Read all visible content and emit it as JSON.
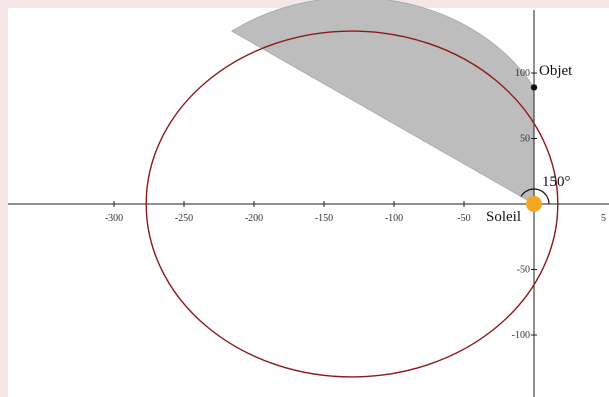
{
  "diagram": {
    "type": "orbital-ellipse",
    "colors": {
      "background": "#f3e7e7",
      "plot_bg": "#ffffff",
      "ellipse": "#8b1a1a",
      "swept_area": "#bdbdbd",
      "sun": "#f5a623",
      "object_point": "#111111",
      "axis": "#222222"
    },
    "x_axis": {
      "ticks": [
        {
          "value": -300,
          "label": "-300"
        },
        {
          "value": -250,
          "label": "-250"
        },
        {
          "value": -200,
          "label": "-200"
        },
        {
          "value": -150,
          "label": "-150"
        },
        {
          "value": -100,
          "label": "-100"
        },
        {
          "value": -50,
          "label": "-50"
        }
      ],
      "partial_tick_label": "5"
    },
    "y_axis": {
      "ticks": [
        {
          "value": 100,
          "label": "100"
        },
        {
          "value": 50,
          "label": "50"
        },
        {
          "value": -50,
          "label": "-50"
        },
        {
          "value": -100,
          "label": "-100"
        }
      ]
    },
    "ellipse": {
      "center": [
        -130,
        0
      ],
      "semi_major": 147,
      "semi_minor": 132
    },
    "sun": {
      "label": "Soleil",
      "position": [
        0,
        0
      ]
    },
    "object": {
      "label": "Objet",
      "position": [
        0,
        89
      ]
    },
    "angle": {
      "label": "150°",
      "degrees": 150
    },
    "swept_area": {
      "from_point": [
        0,
        89
      ],
      "to_point": [
        -216,
        132
      ]
    }
  }
}
